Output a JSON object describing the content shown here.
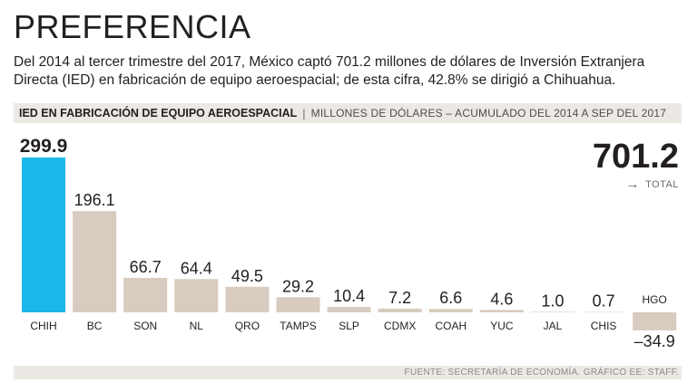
{
  "title": "PREFERENCIA",
  "subtitle": "Del 2014 al tercer trimestre del 2017, México captó 701.2 millones de dólares de Inversión Extranjera Directa (IED) en fabricación de equipo aeroespacial; de esta cifra, 42.8% se dirigió a Chihuahua.",
  "header": {
    "main": "IED EN FABRICACIÓN DE EQUIPO AEROESPACIAL",
    "separator": "|",
    "sub": "MILLONES DE DÓLARES – ACUMULADO DEL 2014 A SEP DEL 2017"
  },
  "total": {
    "value": "701.2",
    "label": "TOTAL",
    "icon": "arrow-right-icon"
  },
  "source": "FUENTE: SECRETARÍA DE ECONOMÍA. GRÁFICO EE: STAFF.",
  "colors": {
    "highlight": "#1ab7ea",
    "bar": "#d8cbbf",
    "text": "#231f20",
    "band": "#ece8e3"
  },
  "chart_data": {
    "type": "bar",
    "title": "IED EN FABRICACIÓN DE EQUIPO AEROESPACIAL",
    "ylabel": "MILLONES DE DÓLARES",
    "categories": [
      "CHIH",
      "BC",
      "SON",
      "NL",
      "QRO",
      "TAMPS",
      "SLP",
      "CDMX",
      "COAH",
      "YUC",
      "JAL",
      "CHIS",
      "HGO"
    ],
    "values": [
      299.9,
      196.1,
      66.7,
      64.4,
      49.5,
      29.2,
      10.4,
      7.2,
      6.6,
      4.6,
      1.0,
      0.7,
      -34.9
    ],
    "labels": [
      "299.9",
      "196.1",
      "66.7",
      "64.4",
      "49.5",
      "29.2",
      "10.4",
      "7.2",
      "6.6",
      "4.6",
      "1.0",
      "0.7",
      "–34.9"
    ],
    "highlight_index": 0,
    "ylim": [
      -34.9,
      299.9
    ],
    "grid": false
  }
}
